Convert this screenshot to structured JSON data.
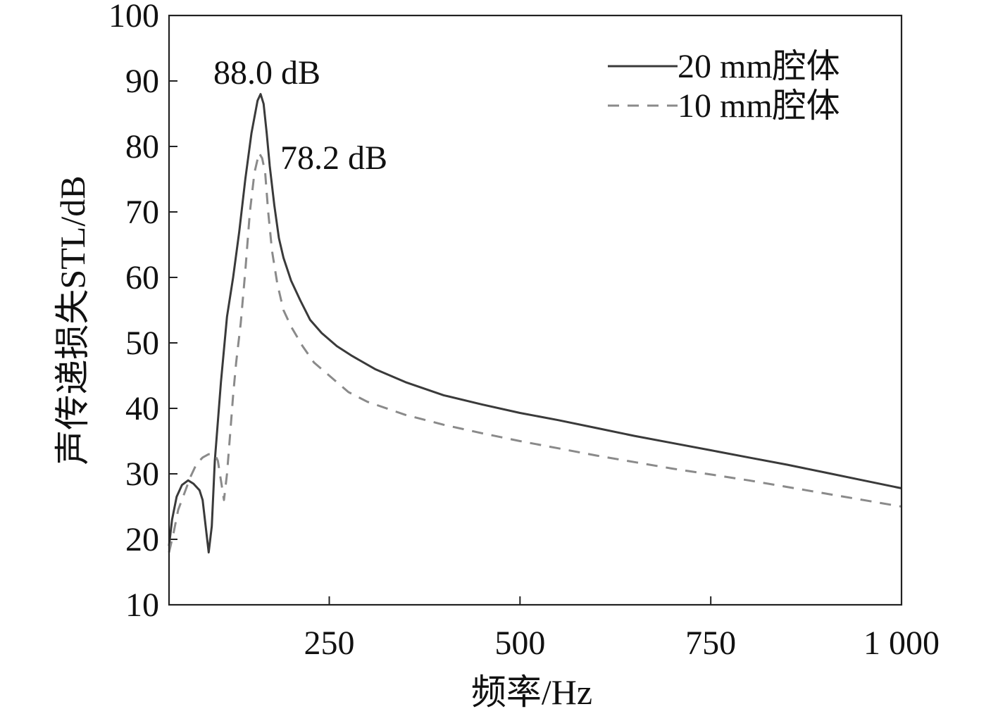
{
  "chart_data": {
    "type": "line",
    "title": "",
    "xlabel": "频率/Hz",
    "ylabel": "声传递损失STL/dB",
    "xlim": [
      40,
      1000
    ],
    "ylim": [
      10,
      100
    ],
    "grid": false,
    "legend_position": "top-right",
    "x_ticks": [
      250,
      500,
      750,
      1000
    ],
    "x_tick_labels": [
      "250",
      "500",
      "750",
      "1 000"
    ],
    "y_ticks": [
      10,
      20,
      30,
      40,
      50,
      60,
      70,
      80,
      90,
      100
    ],
    "y_tick_labels": [
      "10",
      "20",
      "30",
      "40",
      "50",
      "60",
      "70",
      "80",
      "90",
      "100"
    ],
    "series": [
      {
        "name": "20 mm腔体",
        "legend_label": "20 mm腔体",
        "style": "solid",
        "color": "#3a3a3a",
        "x": [
          40,
          44,
          50,
          57,
          65,
          72,
          80,
          84,
          88,
          92,
          96,
          100,
          108,
          116,
          124,
          132,
          140,
          148,
          156,
          160,
          164,
          168,
          172,
          178,
          184,
          190,
          200,
          212,
          225,
          240,
          260,
          280,
          310,
          350,
          400,
          450,
          500,
          550,
          600,
          650,
          700,
          750,
          800,
          850,
          900,
          950,
          1000
        ],
        "y": [
          19,
          23,
          26.5,
          28.3,
          29,
          28.5,
          27.5,
          26,
          22,
          18,
          22,
          32,
          44,
          54,
          60,
          67,
          75,
          82,
          87,
          88,
          86.5,
          82,
          77,
          71,
          66,
          63,
          59.5,
          56.5,
          53.5,
          51.5,
          49.5,
          48,
          46,
          44,
          42,
          40.6,
          39.3,
          38.2,
          37,
          35.8,
          34.7,
          33.6,
          32.5,
          31.4,
          30.2,
          29,
          27.8
        ]
      },
      {
        "name": "10 mm腔体",
        "legend_label": "10 mm腔体",
        "style": "dashed",
        "color": "#8a8a8a",
        "x": [
          40,
          46,
          52,
          60,
          68,
          76,
          84,
          92,
          100,
          104,
          108,
          112,
          116,
          120,
          124,
          128,
          134,
          140,
          146,
          152,
          158,
          162,
          166,
          170,
          175,
          182,
          190,
          200,
          215,
          230,
          250,
          275,
          300,
          350,
          400,
          450,
          500,
          550,
          600,
          650,
          700,
          750,
          800,
          850,
          900,
          950,
          1000
        ],
        "y": [
          18,
          21,
          24.5,
          27,
          29.5,
          31.5,
          32.5,
          33,
          33,
          32,
          29,
          26,
          30,
          36,
          42,
          47,
          53,
          61,
          70,
          76,
          79,
          78.2,
          76,
          70,
          64,
          59,
          55,
          52.5,
          49.5,
          47,
          45,
          42.5,
          41,
          39,
          37.5,
          36.2,
          35,
          33.9,
          32.8,
          31.8,
          30.8,
          29.9,
          29,
          28,
          27,
          26,
          25
        ]
      }
    ],
    "annotations": [
      {
        "text": "88.0 dB",
        "x": 160,
        "y": 88.0,
        "series": "20 mm腔体"
      },
      {
        "text": "78.2 dB",
        "x": 162,
        "y": 78.2,
        "series": "10 mm腔体"
      }
    ]
  }
}
